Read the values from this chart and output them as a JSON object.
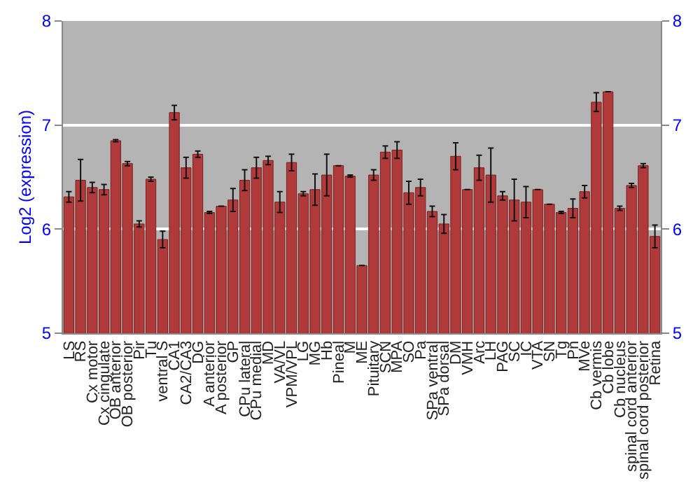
{
  "chart_data": {
    "type": "bar",
    "ylabel": "Log2 (expression)",
    "categories": [
      "LS",
      "RS",
      "Cx motor",
      "Cx cingulate",
      "OB anterior",
      "OB posterior",
      "Pir",
      "Tu",
      "ventral S",
      "CA1",
      "CA2/CA3",
      "DG",
      "A anterior",
      "A posterior",
      "GP",
      "CPu lateral",
      "CPu medial",
      "MD",
      "VA/VL",
      "VPM/VPL",
      "LG",
      "MG",
      "Hb",
      "Pineal",
      "M",
      "ME",
      "Pituitary",
      "SCN",
      "MPA",
      "SO",
      "Pa",
      "SPa ventral",
      "SPa dorsal",
      "DM",
      "VMH",
      "Arc",
      "LH",
      "PAG",
      "SC",
      "IC",
      "VTA",
      "SN",
      "Tg",
      "Pn",
      "MVe",
      "Cb vermis",
      "Cb lobe",
      "Cb nucleus",
      "spinal cord anterior",
      "spinal cord posterior",
      "Retina"
    ],
    "values": [
      6.31,
      6.47,
      6.4,
      6.38,
      6.85,
      6.63,
      6.05,
      6.48,
      5.9,
      7.12,
      6.59,
      6.72,
      6.16,
      6.22,
      6.28,
      6.47,
      6.59,
      6.66,
      6.26,
      6.64,
      6.34,
      6.38,
      6.52,
      6.61,
      6.51,
      5.65,
      6.52,
      6.74,
      6.76,
      6.35,
      6.4,
      6.17,
      6.05,
      6.7,
      6.38,
      6.59,
      6.52,
      6.32,
      6.28,
      6.26,
      6.38,
      6.24,
      6.16,
      6.2,
      6.36,
      7.22,
      7.32,
      6.2,
      6.42,
      6.61,
      5.93
    ],
    "errors": [
      0.05,
      0.2,
      0.05,
      0.05,
      0.01,
      0.02,
      0.03,
      0.02,
      0.08,
      0.07,
      0.1,
      0.03,
      0.01,
      null,
      0.11,
      0.1,
      0.1,
      0.04,
      0.1,
      0.08,
      0.02,
      0.15,
      0.2,
      null,
      0.01,
      null,
      0.05,
      0.06,
      0.08,
      0.11,
      0.08,
      0.05,
      0.09,
      0.13,
      null,
      0.12,
      0.26,
      0.04,
      0.2,
      0.15,
      null,
      null,
      0.01,
      0.09,
      0.06,
      0.09,
      null,
      0.02,
      0.02,
      0.02,
      0.11
    ],
    "color": "#b03a3a",
    "ylim": [
      5,
      8
    ],
    "yticks": [
      5,
      6,
      7,
      8
    ],
    "y2lim": [
      5,
      8
    ],
    "y2ticks": [
      5,
      6,
      7,
      8
    ],
    "grid": "y",
    "legend": false
  }
}
